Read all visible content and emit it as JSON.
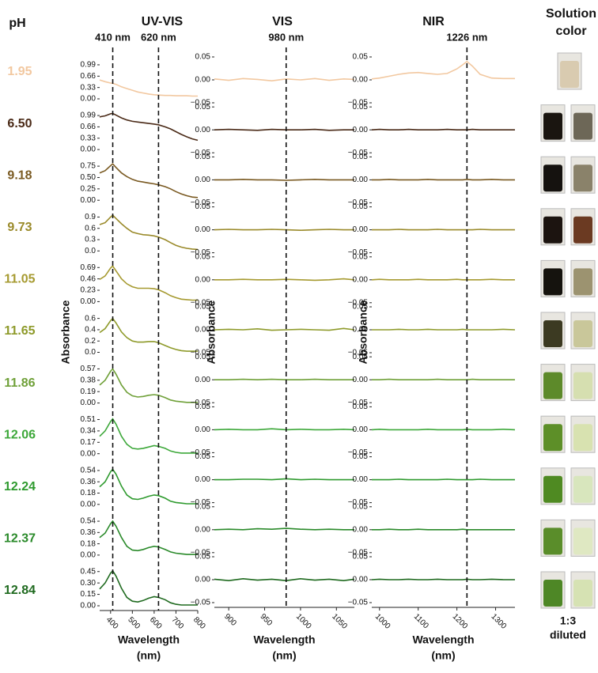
{
  "ph_label": "pH",
  "photo_title": [
    "Solution",
    "color"
  ],
  "photo_note": [
    "1:3",
    "diluted"
  ],
  "chart_data": [
    {
      "type": "line",
      "title": "UV-VIS",
      "xlabel": [
        "Wavelength",
        "(nm)"
      ],
      "ylabel": "Absorbance",
      "xlim": [
        350,
        800
      ],
      "xticks": [
        400,
        500,
        600,
        700,
        800
      ],
      "x": [
        350,
        375,
        400,
        410,
        425,
        450,
        475,
        500,
        525,
        550,
        575,
        600,
        620,
        650,
        675,
        700,
        725,
        750,
        775,
        800
      ],
      "annotations": [
        {
          "x": 410,
          "label": "410 nm"
        },
        {
          "x": 620,
          "label": "620 nm"
        }
      ],
      "panels": [
        {
          "name": "1.95",
          "color": "#f2c8a0",
          "ylim": [
            0,
            1.15
          ],
          "yticks": [
            {
              "value": 0,
              "label": "0.00"
            },
            0.33,
            0.66,
            0.99
          ],
          "values": [
            0.55,
            0.5,
            0.46,
            0.45,
            0.42,
            0.35,
            0.3,
            0.25,
            0.2,
            0.17,
            0.14,
            0.12,
            0.11,
            0.1,
            0.1,
            0.09,
            0.09,
            0.09,
            0.08,
            0.08
          ]
        },
        {
          "name": "6.50",
          "color": "#4a2a17",
          "ylim": [
            0,
            1.15
          ],
          "yticks": [
            {
              "value": 0,
              "label": "0.00"
            },
            0.33,
            0.66,
            0.99
          ],
          "values": [
            0.95,
            0.98,
            1.04,
            1.05,
            1.0,
            0.92,
            0.86,
            0.82,
            0.8,
            0.78,
            0.76,
            0.74,
            0.72,
            0.66,
            0.6,
            0.52,
            0.44,
            0.37,
            0.31,
            0.27
          ]
        },
        {
          "name": "9.18",
          "color": "#7a5a22",
          "ylim": [
            0,
            0.87
          ],
          "yticks": [
            {
              "value": 0,
              "label": "0.00"
            },
            0.25,
            {
              "value": 0.5,
              "label": "0.50"
            },
            0.75
          ],
          "values": [
            0.6,
            0.65,
            0.76,
            0.8,
            0.72,
            0.6,
            0.52,
            0.46,
            0.42,
            0.4,
            0.38,
            0.36,
            0.34,
            0.3,
            0.25,
            0.19,
            0.14,
            0.1,
            0.07,
            0.06
          ]
        },
        {
          "name": "9.73",
          "color": "#9a8a2a",
          "ylim": [
            0,
            1.05
          ],
          "yticks": [
            {
              "value": 0,
              "label": "0.0"
            },
            0.3,
            0.6,
            0.9
          ],
          "values": [
            0.7,
            0.75,
            0.9,
            0.95,
            0.86,
            0.72,
            0.6,
            0.5,
            0.46,
            0.43,
            0.42,
            0.4,
            0.37,
            0.3,
            0.22,
            0.15,
            0.1,
            0.07,
            0.05,
            0.04
          ]
        },
        {
          "name": "11.05",
          "color": "#a69a30",
          "ylim": [
            0,
            0.8
          ],
          "yticks": [
            {
              "value": 0,
              "label": "0.00"
            },
            0.23,
            0.46,
            0.69
          ],
          "values": [
            0.45,
            0.52,
            0.68,
            0.72,
            0.62,
            0.46,
            0.36,
            0.3,
            0.27,
            0.27,
            0.27,
            0.26,
            0.24,
            0.18,
            0.12,
            0.08,
            0.05,
            0.04,
            0.03,
            0.03
          ]
        },
        {
          "name": "11.65",
          "color": "#8e9a2a",
          "ylim": [
            0,
            0.7
          ],
          "yticks": [
            {
              "value": 0,
              "label": "0.0"
            },
            0.2,
            0.4,
            0.6
          ],
          "values": [
            0.35,
            0.42,
            0.56,
            0.6,
            0.52,
            0.36,
            0.26,
            0.2,
            0.18,
            0.18,
            0.19,
            0.19,
            0.17,
            0.12,
            0.08,
            0.05,
            0.03,
            0.02,
            0.02,
            0.02
          ]
        },
        {
          "name": "11.86",
          "color": "#6fa038",
          "ylim": [
            0,
            0.66
          ],
          "yticks": [
            {
              "value": 0,
              "label": "0.00"
            },
            0.19,
            0.38,
            0.57
          ],
          "values": [
            0.3,
            0.38,
            0.53,
            0.57,
            0.48,
            0.3,
            0.18,
            0.12,
            0.1,
            0.11,
            0.13,
            0.14,
            0.13,
            0.09,
            0.05,
            0.03,
            0.02,
            0.01,
            0.01,
            0.01
          ]
        },
        {
          "name": "12.06",
          "color": "#3da83a",
          "ylim": [
            0,
            0.59
          ],
          "yticks": [
            {
              "value": 0,
              "label": "0.00"
            },
            0.17,
            0.34,
            0.51
          ],
          "values": [
            0.26,
            0.34,
            0.48,
            0.52,
            0.44,
            0.26,
            0.14,
            0.08,
            0.07,
            0.08,
            0.1,
            0.12,
            0.11,
            0.08,
            0.04,
            0.02,
            0.01,
            0.01,
            0.01,
            0.01
          ]
        },
        {
          "name": "12.24",
          "color": "#2e9a2e",
          "ylim": [
            0,
            0.63
          ],
          "yticks": [
            {
              "value": 0,
              "label": "0.00"
            },
            0.18,
            0.36,
            0.54
          ],
          "values": [
            0.28,
            0.36,
            0.52,
            0.56,
            0.48,
            0.29,
            0.15,
            0.09,
            0.08,
            0.1,
            0.13,
            0.15,
            0.14,
            0.1,
            0.05,
            0.03,
            0.02,
            0.01,
            0.01,
            0.01
          ]
        },
        {
          "name": "12.37",
          "color": "#2a8a2a",
          "ylim": [
            0,
            0.63
          ],
          "yticks": [
            {
              "value": 0,
              "label": "0.00"
            },
            0.18,
            0.36,
            0.54
          ],
          "values": [
            0.28,
            0.35,
            0.5,
            0.54,
            0.46,
            0.28,
            0.14,
            0.08,
            0.07,
            0.09,
            0.12,
            0.14,
            0.13,
            0.09,
            0.05,
            0.03,
            0.02,
            0.01,
            0.01,
            0.01
          ]
        },
        {
          "name": "12.84",
          "color": "#1f6a1f",
          "ylim": [
            0,
            0.52
          ],
          "yticks": [
            {
              "value": 0,
              "label": "0.00"
            },
            0.15,
            {
              "value": 0.3,
              "label": "0.30"
            },
            0.45
          ],
          "values": [
            0.22,
            0.3,
            0.43,
            0.46,
            0.39,
            0.23,
            0.11,
            0.06,
            0.05,
            0.07,
            0.1,
            0.12,
            0.11,
            0.08,
            0.04,
            0.02,
            0.01,
            0.01,
            0.01,
            0.01
          ]
        }
      ]
    },
    {
      "type": "line",
      "title": "VIS",
      "xlabel": [
        "Wavelength",
        "(nm)"
      ],
      "ylabel": "Absorbance",
      "xlim": [
        880,
        1075
      ],
      "xticks": [
        900,
        950,
        1000,
        1050
      ],
      "ylim": [
        -0.05,
        0.05
      ],
      "yticks": [
        {
          "value": -0.05,
          "label": "−0.05"
        },
        {
          "value": 0,
          "label": "0.00"
        },
        0.05
      ],
      "x": [
        880,
        900,
        920,
        940,
        960,
        980,
        1000,
        1020,
        1040,
        1060,
        1075
      ],
      "annotations": [
        {
          "x": 980,
          "label": "980 nm"
        }
      ],
      "panels": [
        {
          "color": "#f2c8a0",
          "values": [
            0.002,
            -0.001,
            0.003,
            0.001,
            -0.002,
            0.002,
            0.0,
            0.003,
            -0.001,
            0.002,
            0.001
          ]
        },
        {
          "color": "#4a2a17",
          "values": [
            0.0,
            0.001,
            0.0,
            -0.001,
            0.001,
            0.0,
            0.0,
            0.001,
            -0.001,
            0.0,
            0.0
          ]
        },
        {
          "color": "#7a5a22",
          "values": [
            0.0,
            0.0,
            0.001,
            0.0,
            0.0,
            -0.001,
            0.0,
            0.001,
            0.0,
            0.0,
            0.0
          ]
        },
        {
          "color": "#9a8a2a",
          "values": [
            0.0,
            0.001,
            0.0,
            0.0,
            0.001,
            0.0,
            -0.001,
            0.0,
            0.001,
            0.0,
            0.0
          ]
        },
        {
          "color": "#a69a30",
          "values": [
            0.0,
            0.0,
            0.001,
            0.0,
            0.0,
            0.001,
            0.0,
            -0.001,
            0.0,
            0.002,
            0.0
          ]
        },
        {
          "color": "#8e9a2a",
          "values": [
            0.0,
            0.001,
            0.0,
            0.002,
            -0.001,
            0.0,
            0.001,
            0.0,
            -0.001,
            0.003,
            0.0
          ]
        },
        {
          "color": "#6fa038",
          "values": [
            0.0,
            0.0,
            0.001,
            0.0,
            0.001,
            0.0,
            0.0,
            0.001,
            0.0,
            0.0,
            0.0
          ]
        },
        {
          "color": "#3da83a",
          "values": [
            0.0,
            0.001,
            0.0,
            0.0,
            0.002,
            0.0,
            0.001,
            0.0,
            0.0,
            0.001,
            0.0
          ]
        },
        {
          "color": "#2e9a2e",
          "values": [
            0.0,
            0.0,
            0.001,
            0.001,
            0.0,
            0.002,
            0.0,
            0.001,
            0.0,
            0.0,
            0.0
          ]
        },
        {
          "color": "#2a8a2a",
          "values": [
            0.0,
            0.001,
            0.0,
            0.002,
            0.001,
            0.003,
            0.001,
            0.0,
            0.001,
            0.0,
            0.0
          ]
        },
        {
          "color": "#1f6a1f",
          "values": [
            0.001,
            -0.002,
            0.002,
            -0.001,
            0.001,
            -0.002,
            0.002,
            -0.001,
            0.001,
            -0.002,
            0.001
          ]
        }
      ]
    },
    {
      "type": "line",
      "title": "NIR",
      "xlabel": [
        "Wavelength",
        "(nm)"
      ],
      "ylabel": "Absorbance",
      "xlim": [
        980,
        1350
      ],
      "xticks": [
        1000,
        1100,
        1200,
        1300
      ],
      "ylim": [
        -0.05,
        0.05
      ],
      "yticks": [
        {
          "value": -0.05,
          "label": "−0.05"
        },
        {
          "value": 0,
          "label": "0.00"
        },
        0.05
      ],
      "x": [
        980,
        1000,
        1025,
        1050,
        1075,
        1100,
        1125,
        1150,
        1175,
        1200,
        1215,
        1226,
        1240,
        1260,
        1290,
        1320,
        1350
      ],
      "annotations": [
        {
          "x": 1226,
          "label": "1226 nm"
        }
      ],
      "panels": [
        {
          "color": "#f2c8a0",
          "values": [
            0.002,
            0.004,
            0.008,
            0.012,
            0.015,
            0.016,
            0.014,
            0.012,
            0.014,
            0.024,
            0.033,
            0.04,
            0.03,
            0.012,
            0.004,
            0.003,
            0.003
          ]
        },
        {
          "color": "#4a2a17",
          "values": [
            0.0,
            0.001,
            0.0,
            0.0,
            0.001,
            0.0,
            0.0,
            0.0,
            0.001,
            0.0,
            0.0,
            0.0,
            0.001,
            0.0,
            0.0,
            0.0,
            0.0
          ]
        },
        {
          "color": "#7a5a22",
          "values": [
            0.0,
            0.0,
            0.001,
            0.0,
            0.0,
            0.0,
            0.001,
            0.0,
            0.0,
            0.0,
            0.0,
            0.001,
            0.0,
            0.0,
            0.001,
            0.0,
            0.0
          ]
        },
        {
          "color": "#9a8a2a",
          "values": [
            0.0,
            0.0,
            0.0,
            0.001,
            0.0,
            0.0,
            0.0,
            0.001,
            0.0,
            0.0,
            0.0,
            0.0,
            0.0,
            0.001,
            0.0,
            0.0,
            0.0
          ]
        },
        {
          "color": "#a69a30",
          "values": [
            0.0,
            0.001,
            0.0,
            0.0,
            0.0,
            0.001,
            0.0,
            0.0,
            0.0,
            0.001,
            0.0,
            0.0,
            0.0,
            0.0,
            0.001,
            0.0,
            0.0
          ]
        },
        {
          "color": "#8e9a2a",
          "values": [
            0.0,
            0.0,
            0.0,
            0.001,
            0.0,
            0.0,
            0.001,
            0.0,
            0.0,
            0.0,
            0.001,
            0.0,
            0.0,
            0.0,
            0.0,
            0.001,
            0.0
          ]
        },
        {
          "color": "#6fa038",
          "values": [
            0.0,
            0.0,
            0.001,
            0.0,
            0.0,
            0.0,
            0.0,
            0.001,
            0.0,
            0.0,
            0.0,
            0.0,
            0.001,
            0.0,
            0.0,
            0.0,
            0.0
          ]
        },
        {
          "color": "#3da83a",
          "values": [
            0.0,
            0.001,
            0.0,
            0.0,
            0.0,
            0.0,
            0.001,
            0.0,
            0.0,
            0.0,
            0.0,
            0.001,
            0.0,
            0.0,
            0.0,
            0.001,
            0.0
          ]
        },
        {
          "color": "#2e9a2e",
          "values": [
            0.0,
            0.0,
            0.0,
            0.001,
            0.0,
            0.0,
            0.0,
            0.0,
            0.001,
            0.0,
            0.0,
            0.0,
            0.0,
            0.001,
            0.0,
            0.0,
            0.0
          ]
        },
        {
          "color": "#2a8a2a",
          "values": [
            0.0,
            0.0,
            0.001,
            0.0,
            0.0,
            0.001,
            0.0,
            0.0,
            0.0,
            0.0,
            0.001,
            0.0,
            0.0,
            0.0,
            0.0,
            0.0,
            0.0
          ]
        },
        {
          "color": "#1f6a1f",
          "values": [
            0.0,
            0.001,
            0.0,
            0.0,
            0.001,
            0.0,
            0.0,
            0.001,
            0.0,
            0.0,
            0.0,
            0.001,
            0.0,
            0.0,
            0.001,
            0.0,
            0.0
          ]
        }
      ]
    }
  ]
}
